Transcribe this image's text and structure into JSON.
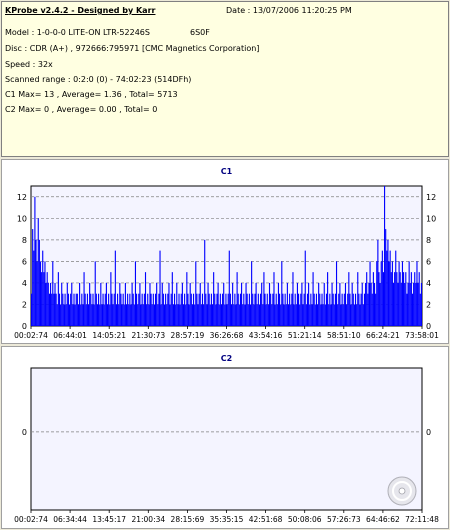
{
  "info": {
    "title": "KProbe v2.4.2 - Designed by Karr",
    "date": "Date : 13/07/2006 11:20:25 PM",
    "model": "Model : 1-0-0-0 LITE-ON LTR-52246S",
    "firmware": "6S0F",
    "disc": "Disc : CDR (A+) , 972666:795971 [CMC Magnetics Corporation]",
    "speed": "Speed : 32x",
    "range": "Scanned range : 0:2:0 (0) - 74:02:23 (514DFh)",
    "c1": "C1 Max= 13 , Average= 1.36 , Total= 5713",
    "c2": "C2 Max= 0 , Average= 0.00 , Total= 0"
  },
  "chart_data": [
    {
      "type": "bar",
      "title": "C1",
      "x_tick_labels": [
        "00:02:74",
        "06:44:01",
        "14:05:21",
        "21:30:73",
        "28:57:19",
        "36:26:68",
        "43:54:16",
        "51:21:14",
        "58:51:10",
        "66:24:21",
        "73:58:01"
      ],
      "y_ticks": [
        0,
        2,
        4,
        6,
        8,
        10,
        12
      ],
      "ylim": [
        0,
        13
      ],
      "grid": true,
      "color": "#0000ff",
      "summary": {
        "max": 13,
        "average": 1.36,
        "total": 5713
      },
      "values": [
        3,
        9,
        7,
        12,
        8,
        6,
        10,
        8,
        6,
        5,
        7,
        5,
        6,
        4,
        5,
        4,
        3,
        4,
        3,
        6,
        3,
        4,
        3,
        2,
        5,
        3,
        2,
        4,
        3,
        2,
        3,
        2,
        4,
        3,
        2,
        3,
        4,
        2,
        3,
        2,
        3,
        3,
        2,
        4,
        2,
        3,
        2,
        5,
        3,
        2,
        3,
        2,
        4,
        3,
        2,
        3,
        2,
        6,
        3,
        2,
        3,
        2,
        4,
        2,
        3,
        2,
        3,
        4,
        2,
        3,
        2,
        5,
        3,
        2,
        3,
        7,
        2,
        3,
        2,
        4,
        3,
        2,
        3,
        2,
        4,
        2,
        3,
        2,
        3,
        2,
        4,
        3,
        2,
        6,
        3,
        2,
        3,
        4,
        2,
        3,
        2,
        3,
        5,
        2,
        3,
        2,
        4,
        3,
        2,
        3,
        2,
        3,
        4,
        2,
        3,
        7,
        2,
        4,
        3,
        2,
        3,
        2,
        3,
        4,
        2,
        3,
        5,
        2,
        3,
        2,
        4,
        2,
        3,
        2,
        3,
        4,
        2,
        3,
        2,
        5,
        3,
        2,
        4,
        3,
        2,
        3,
        2,
        6,
        3,
        2,
        3,
        4,
        2,
        3,
        2,
        8,
        3,
        2,
        4,
        3,
        2,
        3,
        2,
        5,
        3,
        2,
        3,
        4,
        2,
        3,
        2,
        3,
        4,
        2,
        3,
        2,
        3,
        7,
        3,
        2,
        4,
        2,
        3,
        2,
        5,
        3,
        2,
        3,
        4,
        2,
        3,
        2,
        4,
        3,
        2,
        3,
        2,
        6,
        3,
        2,
        3,
        4,
        2,
        3,
        2,
        3,
        4,
        2,
        5,
        3,
        2,
        3,
        2,
        4,
        3,
        2,
        3,
        5,
        2,
        3,
        2,
        4,
        3,
        2,
        6,
        3,
        2,
        3,
        2,
        4,
        2,
        3,
        2,
        3,
        5,
        2,
        3,
        2,
        4,
        3,
        2,
        3,
        4,
        2,
        3,
        7,
        2,
        3,
        4,
        2,
        3,
        2,
        5,
        3,
        2,
        3,
        2,
        4,
        3,
        2,
        3,
        2,
        4,
        2,
        3,
        5,
        2,
        3,
        2,
        4,
        3,
        2,
        3,
        6,
        2,
        3,
        4,
        2,
        3,
        2,
        3,
        4,
        2,
        3,
        5,
        3,
        2,
        4,
        3,
        2,
        3,
        2,
        5,
        3,
        2,
        3,
        4,
        2,
        3,
        4,
        5,
        3,
        4,
        6,
        4,
        3,
        5,
        4,
        3,
        6,
        8,
        5,
        4,
        6,
        7,
        5,
        13,
        9,
        7,
        8,
        6,
        7,
        5,
        6,
        4,
        5,
        7,
        5,
        4,
        6,
        5,
        4,
        6,
        5,
        4,
        5,
        3,
        4,
        6,
        4,
        5,
        3,
        4,
        5,
        4,
        6,
        4,
        5,
        3,
        4
      ]
    },
    {
      "type": "bar",
      "title": "C2",
      "x_tick_labels": [
        "00:02:74",
        "06:34:44",
        "13:45:17",
        "21:00:34",
        "28:15:69",
        "35:35:15",
        "42:51:68",
        "50:08:06",
        "57:26:73",
        "64:46:62",
        "72:11:48"
      ],
      "y_ticks": [
        0
      ],
      "grid": true,
      "color": "#0000ff",
      "summary": {
        "max": 0,
        "average": 0.0,
        "total": 0
      },
      "values": []
    }
  ]
}
